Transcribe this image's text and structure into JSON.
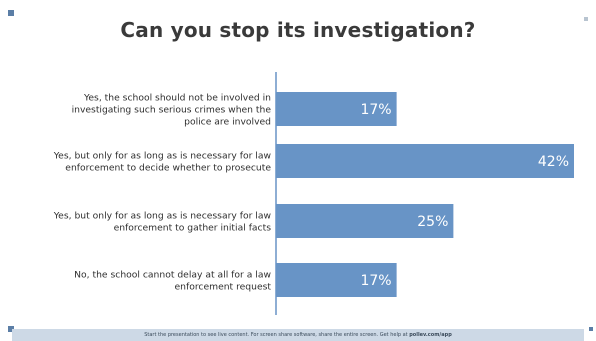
{
  "title": "Can you stop its investigation?",
  "colors": {
    "bar": "#6894c6",
    "axis": "#6894c6",
    "label_text": "#2e2e2e",
    "value_text": "#ffffff",
    "footer_bg": "#cdd9e6"
  },
  "footer": {
    "text": "Start the presentation to see live content. For screen share software, share the entire screen. Get help at",
    "link": "pollev.com/app"
  },
  "chart_data": {
    "type": "bar",
    "orientation": "horizontal",
    "title": "Can you stop its investigation?",
    "categories": [
      [
        "Yes, the school should not be involved in",
        "investigating such serious crimes when the",
        "police are involved"
      ],
      [
        "Yes, but only for as long as is necessary for law",
        "enforcement to decide whether to prosecute"
      ],
      [
        "Yes, but only for as long as is necessary for law",
        "enforcement to gather initial facts"
      ],
      [
        "No, the school cannot delay at all for a law",
        "enforcement request"
      ]
    ],
    "values": [
      17,
      42,
      25,
      17
    ],
    "value_labels": [
      "17%",
      "42%",
      "25%",
      "17%"
    ],
    "xlim": [
      0,
      42
    ],
    "grid": false,
    "legend": "none"
  }
}
